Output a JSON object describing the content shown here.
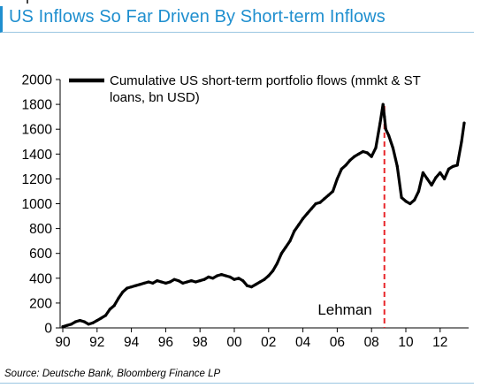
{
  "title": "US Inflows So Far Driven By Short-term Inflows",
  "source": "Source: Deutsche Bank, Bloomberg Finance LP",
  "colors": {
    "title": "#1f8fcf",
    "series": "#000000",
    "annotation_line": "#e8262a"
  },
  "chart_data": {
    "type": "line",
    "title": "US Inflows So Far Driven By Short-term Inflows",
    "xlabel": "",
    "ylabel": "",
    "xlim": [
      1990,
      2013.6
    ],
    "ylim": [
      0,
      2000
    ],
    "x_ticks": [
      1990,
      1992,
      1994,
      1996,
      1998,
      2000,
      2002,
      2004,
      2006,
      2008,
      2010,
      2012
    ],
    "x_tick_labels": [
      "90",
      "92",
      "94",
      "96",
      "98",
      "00",
      "02",
      "04",
      "06",
      "08",
      "10",
      "12"
    ],
    "y_ticks": [
      0,
      200,
      400,
      600,
      800,
      1000,
      1200,
      1400,
      1600,
      1800,
      2000
    ],
    "y_tick_labels": [
      "0",
      "200",
      "400",
      "600",
      "800",
      "1000",
      "1200",
      "1400",
      "1600",
      "1800",
      "2000"
    ],
    "grid": false,
    "legend_position": "top",
    "series": [
      {
        "name": "Cumulative US short-term portfolio flows (mmkt & ST loans, bn USD)",
        "x": [
          1990.0,
          1990.25,
          1990.5,
          1990.75,
          1991.0,
          1991.25,
          1991.5,
          1991.75,
          1992.0,
          1992.25,
          1992.5,
          1992.75,
          1993.0,
          1993.25,
          1993.5,
          1993.75,
          1994.0,
          1994.25,
          1994.5,
          1994.75,
          1995.0,
          1995.25,
          1995.5,
          1995.75,
          1996.0,
          1996.25,
          1996.5,
          1996.75,
          1997.0,
          1997.25,
          1997.5,
          1997.75,
          1998.0,
          1998.25,
          1998.5,
          1998.75,
          1999.0,
          1999.25,
          1999.5,
          1999.75,
          2000.0,
          2000.25,
          2000.5,
          2000.75,
          2001.0,
          2001.25,
          2001.5,
          2001.75,
          2002.0,
          2002.25,
          2002.5,
          2002.75,
          2003.0,
          2003.25,
          2003.5,
          2003.75,
          2004.0,
          2004.25,
          2004.5,
          2004.75,
          2005.0,
          2005.25,
          2005.5,
          2005.75,
          2006.0,
          2006.25,
          2006.5,
          2006.75,
          2007.0,
          2007.25,
          2007.5,
          2007.75,
          2008.0,
          2008.25,
          2008.5,
          2008.67,
          2008.75,
          2008.83,
          2009.0,
          2009.25,
          2009.5,
          2009.75,
          2010.0,
          2010.25,
          2010.5,
          2010.75,
          2011.0,
          2011.25,
          2011.5,
          2011.75,
          2012.0,
          2012.25,
          2012.5,
          2012.75,
          2013.0,
          2013.25,
          2013.4
        ],
        "values": [
          10,
          20,
          30,
          50,
          60,
          50,
          30,
          40,
          60,
          80,
          100,
          150,
          180,
          240,
          290,
          320,
          330,
          340,
          350,
          360,
          370,
          360,
          380,
          370,
          360,
          370,
          390,
          380,
          360,
          370,
          380,
          370,
          380,
          390,
          410,
          400,
          420,
          430,
          420,
          410,
          390,
          400,
          380,
          340,
          330,
          350,
          370,
          390,
          420,
          460,
          520,
          600,
          650,
          700,
          780,
          830,
          880,
          920,
          960,
          1000,
          1010,
          1040,
          1070,
          1100,
          1200,
          1280,
          1310,
          1350,
          1380,
          1400,
          1420,
          1410,
          1380,
          1450,
          1650,
          1800,
          1700,
          1600,
          1550,
          1450,
          1300,
          1050,
          1020,
          1000,
          1030,
          1100,
          1250,
          1200,
          1150,
          1210,
          1250,
          1200,
          1280,
          1300,
          1310,
          1500,
          1650
        ]
      }
    ],
    "annotations": [
      {
        "label": "Lehman",
        "x": 2008.75,
        "style": "dashed vertical line"
      }
    ]
  }
}
